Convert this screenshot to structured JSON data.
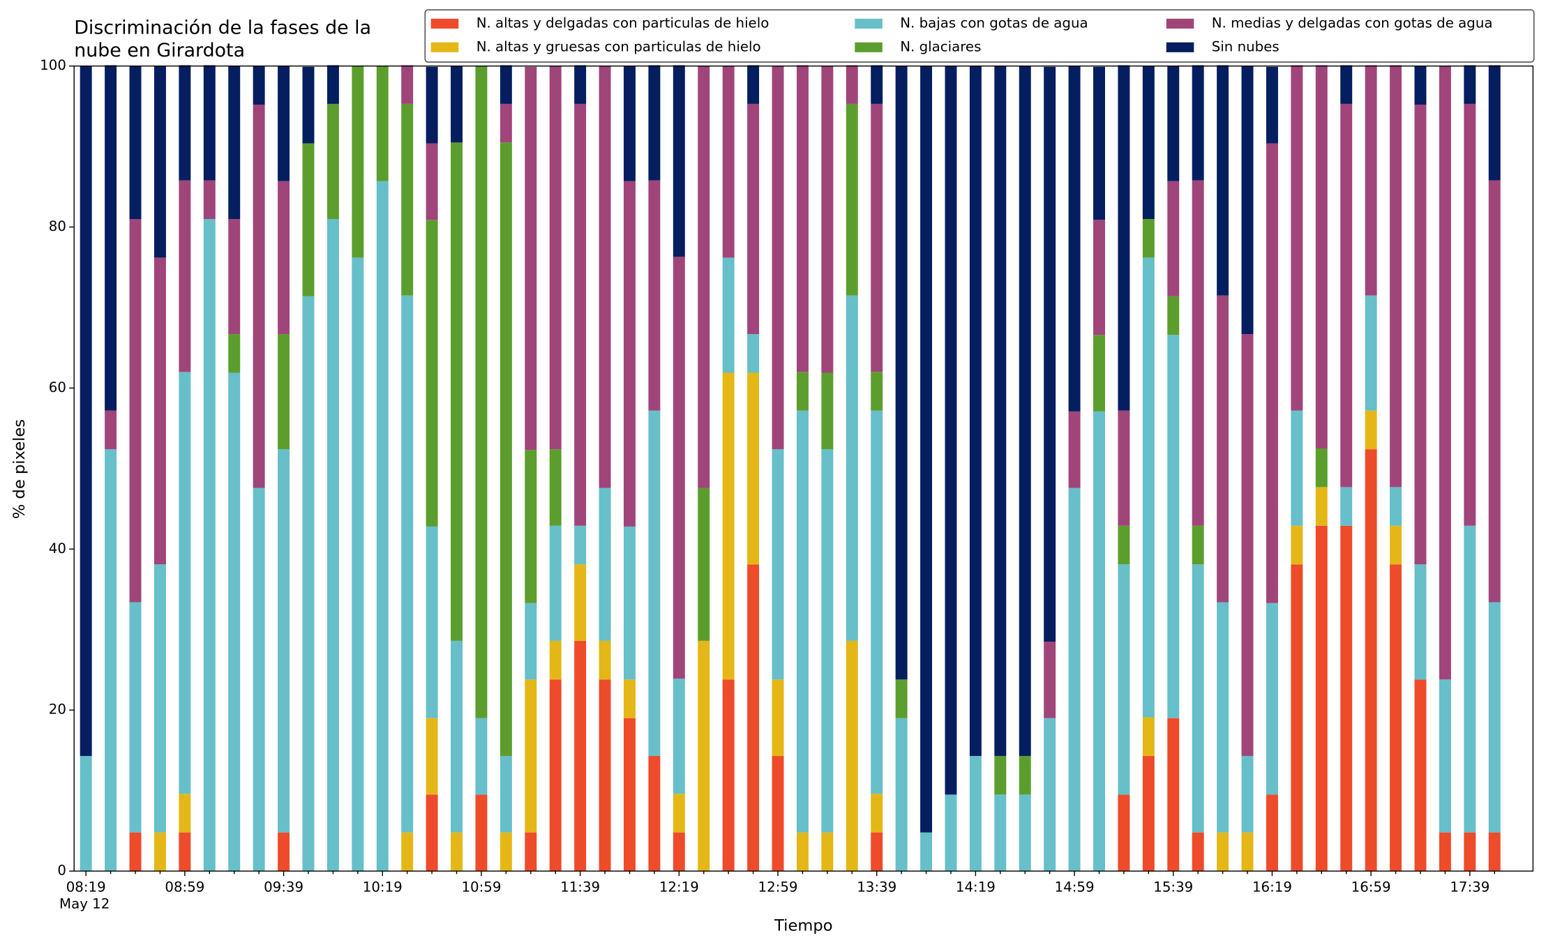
{
  "chart_data": {
    "type": "stacked_bar",
    "title": [
      "Discriminación de la fases de la",
      "nube en Girardota"
    ],
    "xlabel": "Tiempo",
    "ylabel": "% de pixeles",
    "x_sublabel": "May 12",
    "categories": [
      "08:19",
      null,
      null,
      null,
      "08:59",
      null,
      null,
      null,
      "09:39",
      null,
      null,
      null,
      "10:19",
      null,
      null,
      null,
      "10:59",
      null,
      null,
      null,
      "11:39",
      null,
      null,
      null,
      "12:19",
      null,
      null,
      null,
      "12:59",
      null,
      null,
      null,
      "13:39",
      null,
      null,
      null,
      "14:19",
      null,
      null,
      null,
      "14:59",
      null,
      null,
      null,
      "15:39",
      null,
      null,
      null,
      "16:19",
      null,
      null,
      null,
      "16:59",
      null,
      null,
      null,
      "17:39",
      null
    ],
    "ylim": [
      0,
      100
    ],
    "yticks": [
      0,
      20,
      40,
      60,
      80,
      100
    ],
    "legend": "top-right",
    "series": [
      {
        "name": "N. altas y delgadas con particulas de hielo",
        "color": "#ee4b2b",
        "values": [
          0,
          0,
          4.8,
          0,
          4.8,
          0,
          0,
          0,
          4.8,
          0,
          0,
          0,
          0,
          0,
          9.5,
          0,
          9.5,
          0,
          4.8,
          23.8,
          28.6,
          23.8,
          19.0,
          14.3,
          4.8,
          0,
          23.8,
          38.1,
          14.3,
          0,
          0,
          0,
          4.8,
          0,
          0,
          0,
          0,
          0,
          0,
          0,
          0,
          0,
          9.5,
          14.3,
          19.0,
          4.8,
          0,
          0,
          9.5,
          38.1,
          42.9,
          42.9,
          52.4,
          38.1,
          23.8,
          4.8,
          4.8,
          4.8
        ]
      },
      {
        "name": "N. altas y gruesas con particulas de hielo",
        "color": "#e4b717",
        "values": [
          0,
          0,
          0,
          4.8,
          4.8,
          0,
          0,
          0,
          0,
          0,
          0,
          0,
          0,
          4.8,
          9.5,
          4.8,
          0,
          4.8,
          19.0,
          4.8,
          9.5,
          4.8,
          4.8,
          0,
          4.8,
          28.6,
          38.1,
          23.8,
          9.5,
          4.8,
          4.8,
          28.6,
          4.8,
          0,
          0,
          0,
          0,
          0,
          0,
          0,
          0,
          0,
          0,
          4.8,
          0,
          0,
          4.8,
          4.8,
          0,
          4.8,
          4.8,
          0,
          4.8,
          4.8,
          0,
          0,
          0,
          0
        ]
      },
      {
        "name": "N. bajas con gotas de agua",
        "color": "#66bfc9",
        "values": [
          14.3,
          52.4,
          28.6,
          33.3,
          52.4,
          81.0,
          61.9,
          47.6,
          47.6,
          71.4,
          81.0,
          76.2,
          85.7,
          66.7,
          23.8,
          23.8,
          9.5,
          9.5,
          9.5,
          14.3,
          4.8,
          19.0,
          19.0,
          42.9,
          14.3,
          0,
          14.3,
          4.8,
          28.6,
          52.4,
          47.6,
          42.9,
          47.6,
          19.0,
          4.8,
          9.5,
          14.3,
          9.5,
          9.5,
          19.0,
          47.6,
          57.1,
          28.6,
          57.1,
          47.6,
          33.3,
          28.6,
          9.5,
          23.8,
          14.3,
          0,
          4.8,
          14.3,
          4.8,
          14.3,
          19.0,
          38.1,
          28.6
        ]
      },
      {
        "name": "N. glaciares",
        "color": "#5c9e2e",
        "values": [
          0,
          0,
          0,
          0,
          0,
          0,
          4.8,
          0,
          14.3,
          19.0,
          14.3,
          23.8,
          14.3,
          23.8,
          38.1,
          61.9,
          81.0,
          76.2,
          19.0,
          9.5,
          0,
          0,
          0,
          0,
          0,
          19.0,
          0,
          0,
          0,
          4.8,
          9.5,
          23.8,
          4.8,
          4.8,
          0,
          0,
          0,
          4.8,
          4.8,
          0,
          0,
          9.5,
          4.8,
          4.8,
          4.8,
          4.8,
          0,
          0,
          0,
          0,
          4.8,
          0,
          0,
          0,
          0,
          0,
          0,
          0
        ]
      },
      {
        "name": "N. medias y delgadas con gotas de agua",
        "color": "#a0457a",
        "values": [
          0,
          4.8,
          47.6,
          38.1,
          23.8,
          4.8,
          14.3,
          47.6,
          19.0,
          0,
          0,
          0,
          0,
          4.8,
          9.5,
          0,
          0,
          4.8,
          47.6,
          47.6,
          52.4,
          52.4,
          42.9,
          28.6,
          52.4,
          52.4,
          23.8,
          28.6,
          47.6,
          38.1,
          38.1,
          4.8,
          33.3,
          0,
          0,
          0,
          0,
          0,
          0,
          9.5,
          9.5,
          14.3,
          14.3,
          0,
          14.3,
          42.9,
          38.1,
          52.4,
          57.1,
          42.9,
          47.6,
          47.6,
          28.6,
          52.4,
          57.1,
          76.2,
          52.4,
          52.4
        ]
      },
      {
        "name": "Sin nubes",
        "color": "#041e60",
        "values": [
          85.7,
          42.9,
          19.0,
          23.8,
          14.3,
          14.3,
          19.0,
          4.8,
          14.3,
          9.5,
          4.8,
          0,
          0,
          0,
          9.5,
          9.5,
          0,
          4.8,
          0,
          0,
          4.8,
          0,
          14.3,
          14.3,
          23.8,
          0,
          0,
          4.8,
          0,
          0,
          0,
          0,
          4.8,
          76.2,
          95.2,
          90.5,
          85.7,
          85.7,
          85.7,
          71.4,
          42.9,
          19.0,
          42.9,
          19.0,
          14.3,
          14.3,
          28.6,
          33.3,
          9.5,
          0,
          0,
          4.8,
          0,
          0,
          4.8,
          0,
          4.8,
          14.3
        ]
      }
    ]
  }
}
